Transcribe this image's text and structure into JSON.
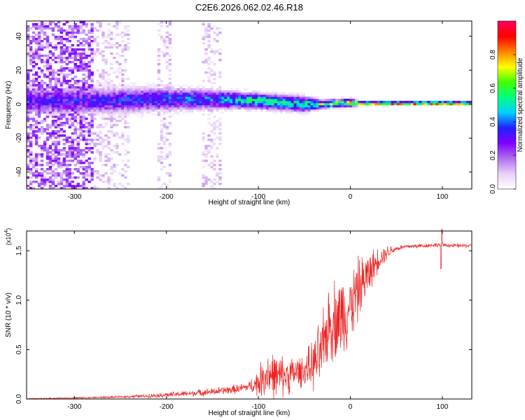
{
  "title": "C2E6.2026.062.02.46.R18",
  "chart_data": [
    {
      "type": "heatmap",
      "name": "spectrogram",
      "xlabel": "Height of straight line (km)",
      "ylabel": "Frequency (Hz)",
      "xlim": [
        -352,
        132
      ],
      "ylim": [
        -50,
        49
      ],
      "x_ticks": [
        -300,
        -200,
        -100,
        0,
        100
      ],
      "y_ticks": [
        -40,
        -20,
        0,
        20,
        40
      ],
      "x_tick_labels": [
        "-300",
        "-200",
        "-100",
        "0",
        "100"
      ],
      "y_tick_labels": [
        "-40",
        "-20",
        "0",
        "20",
        "40"
      ],
      "ridge": {
        "description_points_x": [
          -280,
          -200,
          -150,
          -100,
          -50,
          -30,
          0,
          10,
          50,
          100,
          132
        ],
        "center_freq": [
          2,
          3,
          3,
          2,
          0,
          0,
          1,
          0.5,
          0.5,
          0.5,
          0.5
        ],
        "half_width": [
          7,
          6,
          5,
          4,
          4,
          2,
          2,
          1,
          1,
          1,
          1
        ],
        "peak_amplitude": [
          0.35,
          0.4,
          0.45,
          0.6,
          0.55,
          0.7,
          0.75,
          0.9,
          0.95,
          0.95,
          0.95
        ]
      },
      "noise_region_end_km": -280,
      "vertical_noise_bands_km": [
        [
          -350,
          -280
        ],
        [
          -280,
          -240
        ],
        [
          -210,
          -195
        ],
        [
          -160,
          -140
        ]
      ]
    },
    {
      "type": "colorbar",
      "name": "amplitude-colorbar",
      "label": "Normalized spectral amplitude",
      "range": [
        0.0,
        1.0
      ],
      "ticks": [
        0.0,
        0.2,
        0.4,
        0.6,
        0.8
      ],
      "tick_labels": [
        "0.0",
        "0.2",
        "0.4",
        "0.6",
        "0.8"
      ],
      "colormap": [
        "#ffffff",
        "#e8d0f8",
        "#b070f0",
        "#8000ff",
        "#2020ff",
        "#00d0ff",
        "#00ff80",
        "#40ff00",
        "#ffff00",
        "#ff8000",
        "#ff0000",
        "#ff0060"
      ]
    },
    {
      "type": "line",
      "name": "snr",
      "xlabel": "Height of straight line (km)",
      "ylabel": "SNR (10 * v/v)",
      "y_multiplier": "(x10",
      "y_multiplier_exp": "4",
      "y_multiplier_close": ")",
      "xlim": [
        -352,
        132
      ],
      "ylim": [
        0.0,
        1.7
      ],
      "x_ticks": [
        -300,
        -200,
        -100,
        0,
        100
      ],
      "y_ticks": [
        0.0,
        0.5,
        1.0,
        1.5
      ],
      "x_tick_labels": [
        "-300",
        "-200",
        "-100",
        "0",
        "100"
      ],
      "y_tick_labels": [
        "0.0",
        "0.5",
        "1.0",
        "1.5"
      ],
      "series_color": "#ee2222",
      "profile": {
        "x": [
          -352,
          -300,
          -250,
          -220,
          -200,
          -180,
          -150,
          -120,
          -100,
          -90,
          -80,
          -70,
          -60,
          -50,
          -40,
          -30,
          -25,
          -20,
          -10,
          0,
          10,
          20,
          30,
          40,
          50,
          60,
          80,
          100,
          110,
          132
        ],
        "y": [
          0.0,
          0.01,
          0.02,
          0.03,
          0.04,
          0.05,
          0.07,
          0.1,
          0.15,
          0.25,
          0.2,
          0.22,
          0.25,
          0.28,
          0.32,
          0.45,
          0.7,
          0.75,
          0.8,
          0.9,
          1.1,
          1.25,
          1.4,
          1.48,
          1.52,
          1.54,
          1.55,
          1.56,
          1.55,
          1.55
        ]
      },
      "noise": {
        "x": [
          -352,
          -250,
          -200,
          -150,
          -110,
          -100,
          -90,
          -50,
          -30,
          -10,
          0,
          10,
          30,
          50,
          132
        ],
        "amp": [
          0.005,
          0.008,
          0.02,
          0.03,
          0.04,
          0.12,
          0.2,
          0.12,
          0.3,
          0.35,
          0.3,
          0.25,
          0.1,
          0.02,
          0.015
        ]
      }
    }
  ]
}
